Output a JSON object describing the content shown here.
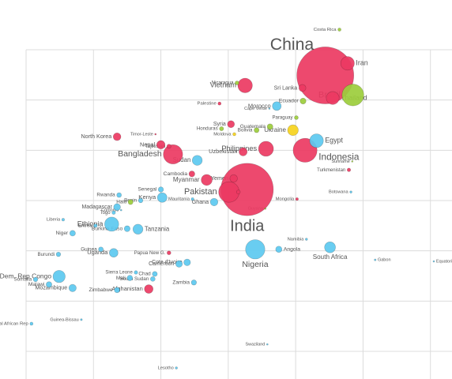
{
  "chart_data": {
    "type": "scatter",
    "xlim": [
      -0.387,
      6.32
    ],
    "ylim": [
      -0.55,
      6.99
    ],
    "xticks": [
      0,
      1,
      2,
      3,
      4,
      5,
      6
    ],
    "yticks": [
      0,
      1,
      2,
      3,
      4,
      5,
      6
    ],
    "grid": true,
    "series": [
      {
        "color": "#ec3a62",
        "labels": [
          "China",
          "India",
          "Indonesia",
          "Vietnam",
          "Philippines",
          "Bangladesh",
          "Pakistan",
          "Myanmar",
          "Thailand",
          "North Korea",
          "Nepal",
          "Cambodia",
          "Uzbekistan",
          "Afghanistan",
          "Yemen",
          "Laos",
          "Iran",
          "Syria",
          "Tajikistan",
          "Timor-Leste",
          "Sri Lanka",
          "Palestine",
          "Turkmenistan",
          "Mongolia",
          "Papua New G."
        ],
        "x": [
          4.44,
          3.28,
          4.14,
          3.25,
          3.56,
          2.18,
          3.01,
          2.68,
          4.55,
          1.35,
          2.0,
          2.46,
          3.22,
          1.82,
          3.08,
          3.15,
          4.77,
          3.04,
          2.12,
          1.92,
          4.1,
          2.87,
          4.79,
          4.02,
          2.12
        ],
        "y": [
          5.49,
          3.22,
          4.0,
          5.29,
          4.03,
          3.92,
          3.17,
          3.41,
          5.04,
          4.27,
          4.11,
          3.53,
          3.97,
          1.24,
          3.44,
          3.17,
          5.73,
          4.52,
          4.08,
          4.32,
          5.24,
          4.93,
          3.61,
          3.03,
          1.96
        ],
        "sizes": [
          1300,
          1100,
          230,
          85,
          90,
          150,
          170,
          48,
          67,
          24,
          28,
          14,
          27,
          30,
          23,
          6,
          74,
          20,
          7,
          1,
          20,
          4,
          5,
          3,
          6
        ]
      },
      {
        "color": "#5cc9f0",
        "labels": [
          "Nigeria",
          "Ethiopia",
          "Dem. Rep Congo",
          "Egypt",
          "Tanzania",
          "Kenya",
          "South Africa",
          "Uganda",
          "Sudan",
          "Morocco",
          "Ghana",
          "Mozambique",
          "Madagascar",
          "Cameroon",
          "Malawi",
          "Burkina Faso",
          "Zambia",
          "Angola",
          "Cote d'Ivoire",
          "Mali",
          "Chad",
          "South Sudan",
          "Niger",
          "Sierra Leone",
          "Zimbabwe",
          "Rwanda",
          "Liberia",
          "Guinea",
          "Central African Rep",
          "Guinea-Bissau",
          "Lesotho",
          "Swaziland",
          "Senegal",
          "Namibia",
          "Gabon",
          "Equatorial Guinea",
          "Burundi",
          "Mauritania",
          "Somalia",
          "Eritrea",
          "Comoros",
          "Botswana",
          "Cape Verde",
          "Benin",
          "Togo"
        ],
        "x": [
          3.4,
          1.27,
          0.49,
          4.31,
          1.66,
          2.02,
          4.51,
          1.3,
          2.54,
          3.72,
          2.79,
          0.69,
          1.35,
          2.27,
          0.34,
          1.5,
          2.49,
          3.75,
          2.39,
          1.54,
          1.91,
          1.88,
          0.69,
          1.63,
          1.35,
          1.38,
          0.55,
          1.11,
          0.08,
          0.82,
          2.23,
          3.58,
          2.0,
          4.16,
          5.18,
          6.05,
          0.48,
          2.47,
          0.14,
          1.03,
          1.41,
          4.82,
          3.61,
          1.7,
          1.3
        ],
        "y": [
          2.03,
          2.53,
          1.49,
          4.19,
          2.43,
          3.06,
          2.07,
          1.96,
          3.8,
          4.88,
          2.97,
          1.26,
          2.87,
          1.74,
          1.33,
          2.44,
          1.37,
          2.03,
          1.77,
          1.46,
          1.54,
          1.44,
          2.35,
          1.57,
          1.22,
          3.11,
          2.62,
          2.03,
          0.55,
          0.63,
          -0.33,
          0.14,
          3.22,
          2.23,
          1.82,
          1.79,
          1.93,
          3.03,
          1.43,
          2.5,
          2.81,
          3.17,
          4.83,
          3.0,
          2.76
        ],
        "sizes": [
          150,
          80,
          60,
          75,
          40,
          37,
          48,
          30,
          40,
          31,
          23,
          22,
          19,
          18,
          13,
          14,
          11,
          16,
          18,
          12,
          10,
          9,
          13,
          5,
          12,
          9,
          3,
          9,
          4,
          1.5,
          2,
          1,
          11,
          2,
          1.4,
          0.7,
          8,
          3,
          8,
          5,
          0.7,
          2,
          0.5,
          8,
          5
        ]
      },
      {
        "color": "#9ccd3c",
        "labels": [
          "Brazil",
          "Nicaragua",
          "Honduras",
          "Guatemala",
          "Bolivia",
          "Haiti",
          "Guyana",
          "Paraguay",
          "Ecuador",
          "Costa Rica",
          "Suriname"
        ],
        "x": [
          4.85,
          3.13,
          2.9,
          3.62,
          3.42,
          1.55,
          3.55,
          4.01,
          4.11,
          4.65,
          4.84
        ],
        "y": [
          5.1,
          5.34,
          4.43,
          4.47,
          4.4,
          2.97,
          2.84,
          4.65,
          4.98,
          6.4,
          3.78
        ],
        "sizes": [
          190,
          6,
          7,
          13,
          10,
          10,
          0.8,
          6,
          14,
          4,
          0.6
        ]
      },
      {
        "color": "#f6d21c",
        "labels": [
          "Ukraine",
          "Moldova"
        ],
        "x": [
          3.96,
          3.09
        ],
        "y": [
          4.4,
          4.32
        ],
        "sizes": [
          46,
          4
        ]
      }
    ]
  }
}
